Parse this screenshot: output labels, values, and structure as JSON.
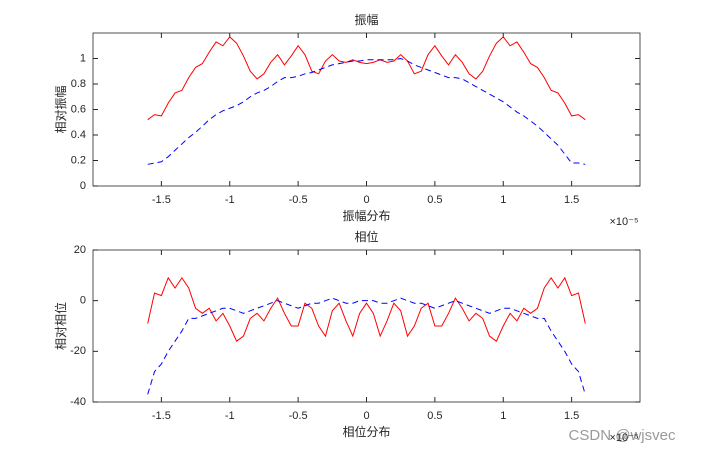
{
  "chart_data": [
    {
      "type": "line",
      "title": "振幅",
      "xlabel": "振幅分布",
      "ylabel": "相对振幅",
      "x_multiplier": "×10⁻⁵",
      "x": [
        -1.6,
        -1.55,
        -1.5,
        -1.45,
        -1.4,
        -1.35,
        -1.3,
        -1.25,
        -1.2,
        -1.15,
        -1.1,
        -1.05,
        -1.0,
        -0.95,
        -0.9,
        -0.85,
        -0.8,
        -0.75,
        -0.7,
        -0.65,
        -0.6,
        -0.55,
        -0.5,
        -0.45,
        -0.4,
        -0.35,
        -0.3,
        -0.25,
        -0.2,
        -0.15,
        -0.1,
        -0.05,
        0,
        0.05,
        0.1,
        0.15,
        0.2,
        0.25,
        0.3,
        0.35,
        0.4,
        0.45,
        0.5,
        0.55,
        0.6,
        0.65,
        0.7,
        0.75,
        0.8,
        0.85,
        0.9,
        0.95,
        1.0,
        1.05,
        1.1,
        1.15,
        1.2,
        1.25,
        1.3,
        1.35,
        1.4,
        1.45,
        1.5,
        1.55,
        1.6
      ],
      "series": [
        {
          "color": "#ff0000",
          "line_style": "solid",
          "values": [
            0.52,
            0.56,
            0.55,
            0.65,
            0.73,
            0.75,
            0.85,
            0.93,
            0.96,
            1.05,
            1.13,
            1.1,
            1.17,
            1.12,
            1.02,
            0.9,
            0.84,
            0.88,
            0.97,
            1.03,
            0.95,
            1.02,
            1.1,
            1.03,
            0.9,
            0.88,
            0.98,
            1.03,
            0.98,
            0.97,
            0.99,
            0.97,
            0.96,
            0.97,
            0.99,
            0.97,
            0.98,
            1.03,
            0.98,
            0.88,
            0.9,
            1.03,
            1.1,
            1.02,
            0.95,
            1.03,
            0.97,
            0.88,
            0.84,
            0.9,
            1.02,
            1.12,
            1.17,
            1.1,
            1.13,
            1.05,
            0.96,
            0.93,
            0.85,
            0.75,
            0.73,
            0.65,
            0.55,
            0.56,
            0.52
          ]
        },
        {
          "color": "#0000ff",
          "line_style": "dashed",
          "values": [
            0.17,
            0.18,
            0.19,
            0.23,
            0.28,
            0.33,
            0.38,
            0.42,
            0.47,
            0.52,
            0.56,
            0.59,
            0.61,
            0.63,
            0.66,
            0.7,
            0.73,
            0.75,
            0.78,
            0.82,
            0.85,
            0.85,
            0.86,
            0.88,
            0.89,
            0.91,
            0.93,
            0.95,
            0.96,
            0.97,
            0.98,
            0.98,
            0.99,
            0.99,
            0.99,
            0.99,
            0.99,
            1.0,
            0.98,
            0.95,
            0.93,
            0.91,
            0.89,
            0.87,
            0.85,
            0.85,
            0.84,
            0.81,
            0.78,
            0.75,
            0.72,
            0.69,
            0.66,
            0.62,
            0.58,
            0.55,
            0.51,
            0.47,
            0.42,
            0.37,
            0.32,
            0.25,
            0.18,
            0.18,
            0.17
          ]
        }
      ],
      "xlim": [
        -2,
        2
      ],
      "xticks": [
        -1.5,
        -1,
        -0.5,
        0,
        0.5,
        1,
        1.5
      ],
      "ylim": [
        0,
        1.2
      ],
      "yticks": [
        0,
        0.2,
        0.4,
        0.6,
        0.8,
        1
      ]
    },
    {
      "type": "line",
      "title": "相位",
      "xlabel": "相位分布",
      "ylabel": "相对相位",
      "x_multiplier": "×10⁻⁵",
      "x": [
        -1.6,
        -1.55,
        -1.5,
        -1.45,
        -1.4,
        -1.35,
        -1.3,
        -1.25,
        -1.2,
        -1.15,
        -1.1,
        -1.05,
        -1.0,
        -0.95,
        -0.9,
        -0.85,
        -0.8,
        -0.75,
        -0.7,
        -0.65,
        -0.6,
        -0.55,
        -0.5,
        -0.45,
        -0.4,
        -0.35,
        -0.3,
        -0.25,
        -0.2,
        -0.15,
        -0.1,
        -0.05,
        0,
        0.05,
        0.1,
        0.15,
        0.2,
        0.25,
        0.3,
        0.35,
        0.4,
        0.45,
        0.5,
        0.55,
        0.6,
        0.65,
        0.7,
        0.75,
        0.8,
        0.85,
        0.9,
        0.95,
        1.0,
        1.05,
        1.1,
        1.15,
        1.2,
        1.25,
        1.3,
        1.35,
        1.4,
        1.45,
        1.5,
        1.55,
        1.6
      ],
      "series": [
        {
          "color": "#ff0000",
          "line_style": "solid",
          "values": [
            -9,
            3,
            2,
            9,
            5,
            9,
            5,
            -3,
            -5,
            -3,
            -8,
            -5,
            -10,
            -16,
            -14,
            -7,
            -5,
            -8,
            -3,
            1,
            -5,
            -10,
            -10,
            -1,
            -3,
            -10,
            -14,
            -4,
            -1,
            -8,
            -14,
            -5,
            -1,
            -5,
            -14,
            -8,
            -1,
            -4,
            -14,
            -10,
            -3,
            -1,
            -10,
            -10,
            -5,
            1,
            -3,
            -8,
            -5,
            -7,
            -14,
            -16,
            -10,
            -5,
            -8,
            -3,
            -5,
            -3,
            5,
            9,
            5,
            9,
            2,
            3,
            -9
          ]
        },
        {
          "color": "#0000ff",
          "line_style": "dashed",
          "values": [
            -37,
            -28,
            -25,
            -20,
            -16,
            -12,
            -7,
            -7,
            -6,
            -5,
            -4,
            -3,
            -3,
            -4,
            -5,
            -4,
            -3,
            -2,
            -1,
            0,
            -1,
            -2,
            -3,
            -2,
            -1,
            -1,
            0,
            1,
            0,
            -1,
            -1,
            0,
            0,
            0,
            -1,
            -1,
            0,
            1,
            0,
            -1,
            -1,
            -2,
            -3,
            -2,
            -1,
            0,
            -1,
            -2,
            -3,
            -4,
            -5,
            -4,
            -3,
            -3,
            -4,
            -5,
            -6,
            -7,
            -7,
            -12,
            -16,
            -20,
            -25,
            -28,
            -37
          ]
        }
      ],
      "xlim": [
        -2,
        2
      ],
      "xticks": [
        -1.5,
        -1,
        -0.5,
        0,
        0.5,
        1,
        1.5
      ],
      "ylim": [
        -40,
        20
      ],
      "yticks": [
        -40,
        -20,
        0,
        20
      ]
    }
  ],
  "watermark": "CSDN @wjsvec"
}
